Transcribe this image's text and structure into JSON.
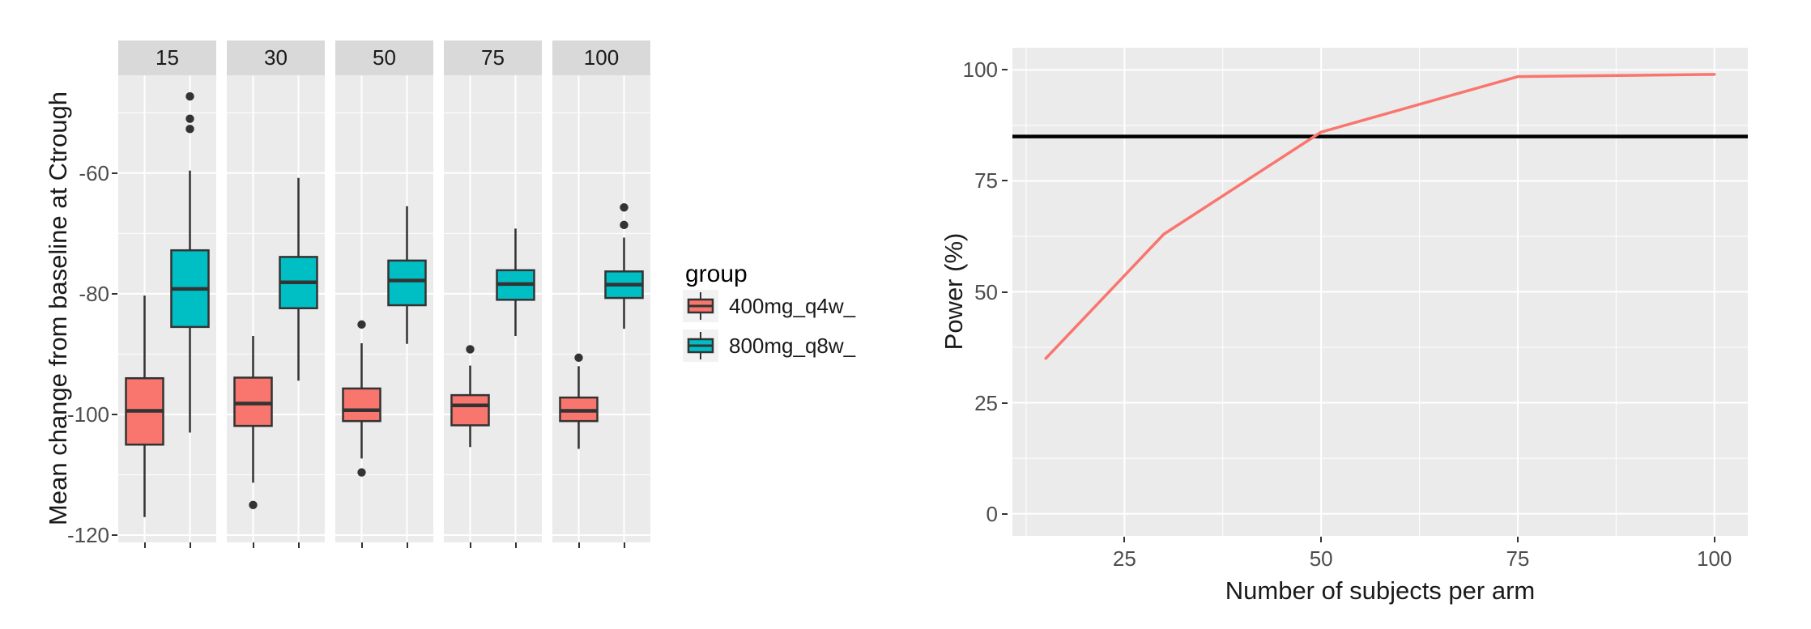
{
  "left_chart": {
    "ylabel": "Mean change from baseline at Ctrough",
    "legend": {
      "title": "group",
      "entries": [
        {
          "label": "400mg_q4w_",
          "color": "#F8766D"
        },
        {
          "label": "800mg_q8w_",
          "color": "#00BFC4"
        }
      ]
    }
  },
  "right_chart": {
    "xlabel": "Number of subjects per arm",
    "ylabel": "Power (%)"
  },
  "chart_data": [
    {
      "type": "boxplot",
      "ylabel": "Mean change from baseline at Ctrough",
      "facets": [
        "15",
        "30",
        "50",
        "75",
        "100"
      ],
      "groups": [
        "400mg_q4w_",
        "800mg_q8w_"
      ],
      "group_colors": {
        "400mg_q4w_": "#F8766D",
        "800mg_q8w_": "#00BFC4"
      },
      "legend_title": "group",
      "ylim": [
        -121.2,
        -43.8
      ],
      "y_ticks_major": [
        -60,
        -80,
        -100,
        -120
      ],
      "y_ticks_minor": [
        -50,
        -70,
        -90,
        -110
      ],
      "panel_bg": "#ebebeb",
      "strip_bg": "#d9d9d9",
      "grid_color": "#ffffff",
      "box_border_color": "#333333",
      "boxes": [
        {
          "facet": "15",
          "group": "400mg_q4w_",
          "whisker_low": -117.0,
          "q1": -105.0,
          "median": -99.4,
          "q3": -94.0,
          "whisker_high": -80.3,
          "outliers": []
        },
        {
          "facet": "15",
          "group": "800mg_q8w_",
          "whisker_low": -103.0,
          "q1": -85.5,
          "median": -79.2,
          "q3": -72.8,
          "whisker_high": -59.6,
          "outliers": [
            -47.3,
            -51.0,
            -52.7
          ]
        },
        {
          "facet": "30",
          "group": "400mg_q4w_",
          "whisker_low": -111.3,
          "q1": -101.9,
          "median": -98.2,
          "q3": -93.9,
          "whisker_high": -87.0,
          "outliers": [
            -115.0
          ]
        },
        {
          "facet": "30",
          "group": "800mg_q8w_",
          "whisker_low": -94.4,
          "q1": -82.4,
          "median": -78.1,
          "q3": -73.9,
          "whisker_high": -60.8,
          "outliers": []
        },
        {
          "facet": "50",
          "group": "400mg_q4w_",
          "whisker_low": -107.3,
          "q1": -101.1,
          "median": -99.3,
          "q3": -95.7,
          "whisker_high": -88.2,
          "outliers": [
            -85.1,
            -109.6
          ]
        },
        {
          "facet": "50",
          "group": "800mg_q8w_",
          "whisker_low": -88.3,
          "q1": -81.9,
          "median": -77.8,
          "q3": -74.5,
          "whisker_high": -65.5,
          "outliers": []
        },
        {
          "facet": "75",
          "group": "400mg_q4w_",
          "whisker_low": -105.4,
          "q1": -101.8,
          "median": -98.5,
          "q3": -96.8,
          "whisker_high": -91.9,
          "outliers": [
            -89.2
          ]
        },
        {
          "facet": "75",
          "group": "800mg_q8w_",
          "whisker_low": -87.0,
          "q1": -81.0,
          "median": -78.4,
          "q3": -76.1,
          "whisker_high": -69.2,
          "outliers": []
        },
        {
          "facet": "100",
          "group": "400mg_q4w_",
          "whisker_low": -105.7,
          "q1": -101.1,
          "median": -99.4,
          "q3": -97.2,
          "whisker_high": -92.0,
          "outliers": [
            -90.6
          ]
        },
        {
          "facet": "100",
          "group": "800mg_q8w_",
          "whisker_low": -85.8,
          "q1": -80.7,
          "median": -78.5,
          "q3": -76.3,
          "whisker_high": -70.7,
          "outliers": [
            -65.7,
            -68.6
          ]
        }
      ]
    },
    {
      "type": "line",
      "xlabel": "Number of subjects per arm",
      "ylabel": "Power (%)",
      "x": [
        15,
        30,
        50,
        75,
        100
      ],
      "series": [
        {
          "name": "power",
          "color": "#F8766D",
          "values": [
            35,
            63,
            86,
            98.5,
            99
          ]
        }
      ],
      "hline": {
        "y": 85,
        "color": "#000000"
      },
      "xlim": [
        10.75,
        104.25
      ],
      "ylim": [
        -5,
        105
      ],
      "x_ticks": [
        25,
        50,
        75,
        100
      ],
      "y_ticks": [
        0,
        25,
        50,
        75,
        100
      ],
      "x_ticks_minor": [
        12.5,
        37.5,
        62.5,
        87.5
      ],
      "y_ticks_minor": [
        12.5,
        37.5,
        62.5,
        87.5
      ],
      "grid": true,
      "legend_position": "none",
      "panel_bg": "#ebebeb",
      "grid_color": "#ffffff"
    }
  ]
}
